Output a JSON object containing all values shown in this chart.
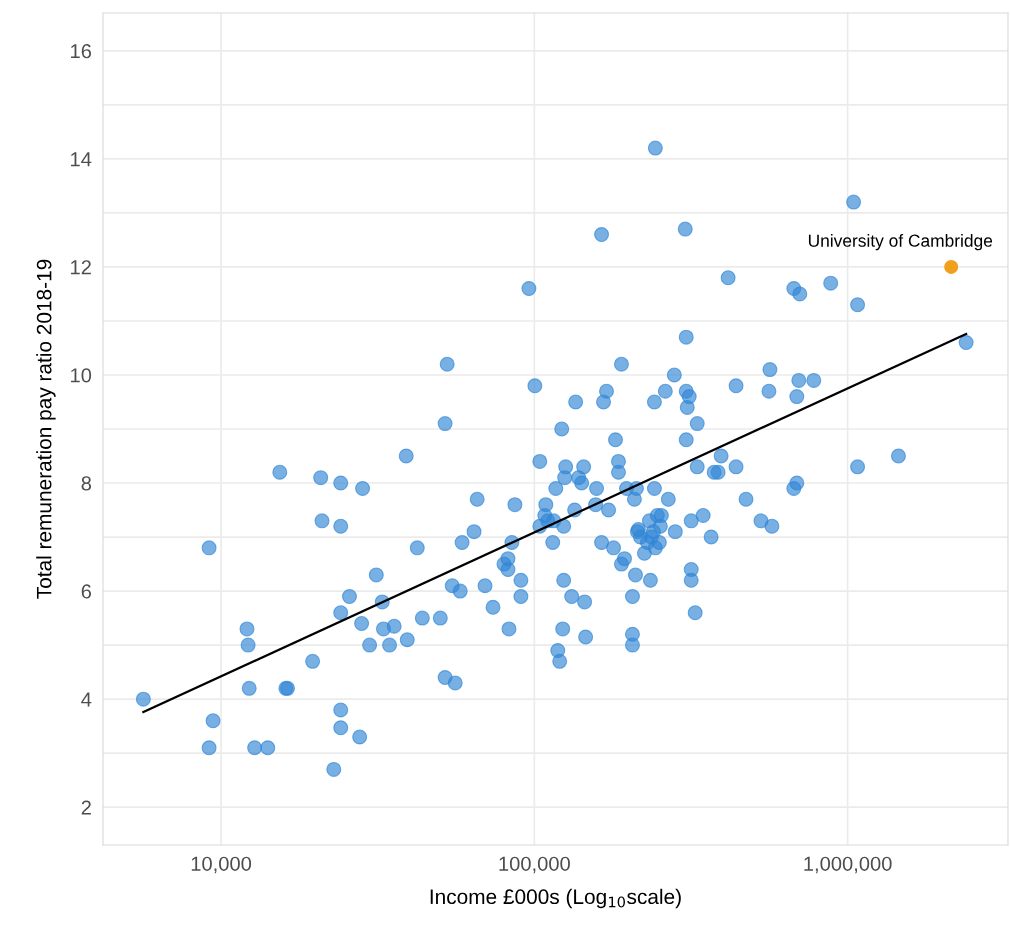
{
  "chart_data": {
    "type": "scatter",
    "xlabel": "Income £000s (Log$_{10}$scale)",
    "ylabel": "Total remuneration pay ratio 2018-19",
    "log": "x",
    "xlim": [
      4200,
      3250000
    ],
    "ylim": [
      1.3,
      16.7
    ],
    "xticks": [
      {
        "value": 10000,
        "label": "10,000"
      },
      {
        "value": 100000,
        "label": "100,000"
      },
      {
        "value": 1000000,
        "label": "1,000,000"
      }
    ],
    "yticks": [
      2,
      {
        "value": 3,
        "label": null
      },
      4,
      {
        "value": 5,
        "label": null
      },
      6,
      {
        "value": 7,
        "label": null
      },
      8,
      {
        "value": 9,
        "label": null
      },
      10,
      {
        "value": 11,
        "label": null
      },
      12,
      {
        "value": 13,
        "label": null
      },
      14,
      {
        "value": 15,
        "label": null
      },
      16
    ],
    "grid": true,
    "legend": false,
    "marker": "circle",
    "annotations": [
      {
        "text": "University of Cambridge",
        "x": 2141000,
        "y": 12.0
      }
    ],
    "series": [
      {
        "color": "#2f86d6",
        "x": [
          5650,
          9160,
          9160,
          9430,
          12100,
          12200,
          12300,
          12800,
          14100,
          15400,
          16100,
          16300,
          19600,
          20800,
          21000,
          24100,
          24100,
          24100,
          24100,
          24100,
          22900,
          25700,
          27700,
          28100,
          28300,
          29800,
          31300,
          32700,
          33000,
          34500,
          35700,
          39000,
          39300,
          42300,
          43900,
          50100,
          51900,
          51900,
          52700,
          54700,
          55900,
          58000,
          58800,
          64200,
          65700,
          69600,
          73800,
          80000,
          82400,
          82400,
          83000,
          84800,
          86700,
          90600,
          90600,
          96100,
          100400,
          104100,
          104100,
          108000,
          108800,
          110400,
          114500,
          115300,
          117100,
          118800,
          120500,
          122300,
          123200,
          124100,
          124100,
          125000,
          125900,
          131600,
          134500,
          135500,
          138500,
          141600,
          143700,
          144700,
          145800,
          156900,
          158000,
          163900,
          163900,
          166300,
          170000,
          172600,
          179000,
          181600,
          185600,
          185600,
          189700,
          189700,
          194000,
          196900,
          205700,
          205700,
          205700,
          208700,
          210300,
          211800,
          213400,
          214900,
          218100,
          224600,
          229600,
          233000,
          236400,
          234700,
          239900,
          243400,
          241700,
          241700,
          243400,
          247000,
          254400,
          252500,
          250600,
          261900,
          267700,
          279800,
          281800,
          303200,
          305400,
          305400,
          307700,
          312200,
          305400,
          316800,
          316800,
          316800,
          326200,
          331100,
          331100,
          345900,
          366800,
          375000,
          386100,
          394700,
          415500,
          440500,
          440500,
          474000,
          529000,
          564900,
          560900,
          573300,
          673400,
          673400,
          688400,
          688400,
          698500,
          703700,
          779800,
          883100,
          1045000,
          1076000,
          1076000,
          1453000,
          2390000
        ],
        "values": [
          4.0,
          6.8,
          3.1,
          3.6,
          5.3,
          5.0,
          4.2,
          3.1,
          3.1,
          8.2,
          4.2,
          4.2,
          4.7,
          8.1,
          7.3,
          8.0,
          7.2,
          5.6,
          3.8,
          3.47,
          2.7,
          5.9,
          3.3,
          5.4,
          7.9,
          5.0,
          6.3,
          5.8,
          5.3,
          5.0,
          5.35,
          8.5,
          5.1,
          6.8,
          5.5,
          5.5,
          9.1,
          4.4,
          10.2,
          6.1,
          4.3,
          6.0,
          6.9,
          7.1,
          7.7,
          6.1,
          5.7,
          6.5,
          6.6,
          6.4,
          5.3,
          6.9,
          7.6,
          6.2,
          5.9,
          11.6,
          9.8,
          8.4,
          7.2,
          7.4,
          7.6,
          7.3,
          6.9,
          7.3,
          7.9,
          4.9,
          4.7,
          9.0,
          5.3,
          7.2,
          6.2,
          8.1,
          8.3,
          5.9,
          7.5,
          9.5,
          8.1,
          8.0,
          8.3,
          5.8,
          5.15,
          7.6,
          7.9,
          12.6,
          6.9,
          9.5,
          9.7,
          7.5,
          6.8,
          8.8,
          8.2,
          8.4,
          6.5,
          10.2,
          6.6,
          7.9,
          5.9,
          5.2,
          5.0,
          7.7,
          6.3,
          7.9,
          7.1,
          7.14,
          7.0,
          6.7,
          6.9,
          7.3,
          7.0,
          6.2,
          7.1,
          14.2,
          9.5,
          7.9,
          6.8,
          7.4,
          7.4,
          7.2,
          6.9,
          9.7,
          7.7,
          10.0,
          7.1,
          12.7,
          10.7,
          9.7,
          9.4,
          9.6,
          8.8,
          7.3,
          6.4,
          6.2,
          5.6,
          8.3,
          9.1,
          7.4,
          7.0,
          8.2,
          8.2,
          8.5,
          11.8,
          9.8,
          8.3,
          7.7,
          7.3,
          10.1,
          9.7,
          7.2,
          11.6,
          7.9,
          8.0,
          9.6,
          9.9,
          11.5,
          9.9,
          11.7,
          13.2,
          11.3,
          8.3,
          8.5,
          10.6
        ]
      },
      {
        "color": "#f0a01c",
        "x": [
          2141000
        ],
        "values": [
          12.0
        ]
      },
      {
        "type": "line",
        "marker": "none",
        "color": "#000000",
        "x": [
          5650,
          2390000
        ],
        "values": [
          3.76,
          10.76
        ]
      }
    ]
  }
}
